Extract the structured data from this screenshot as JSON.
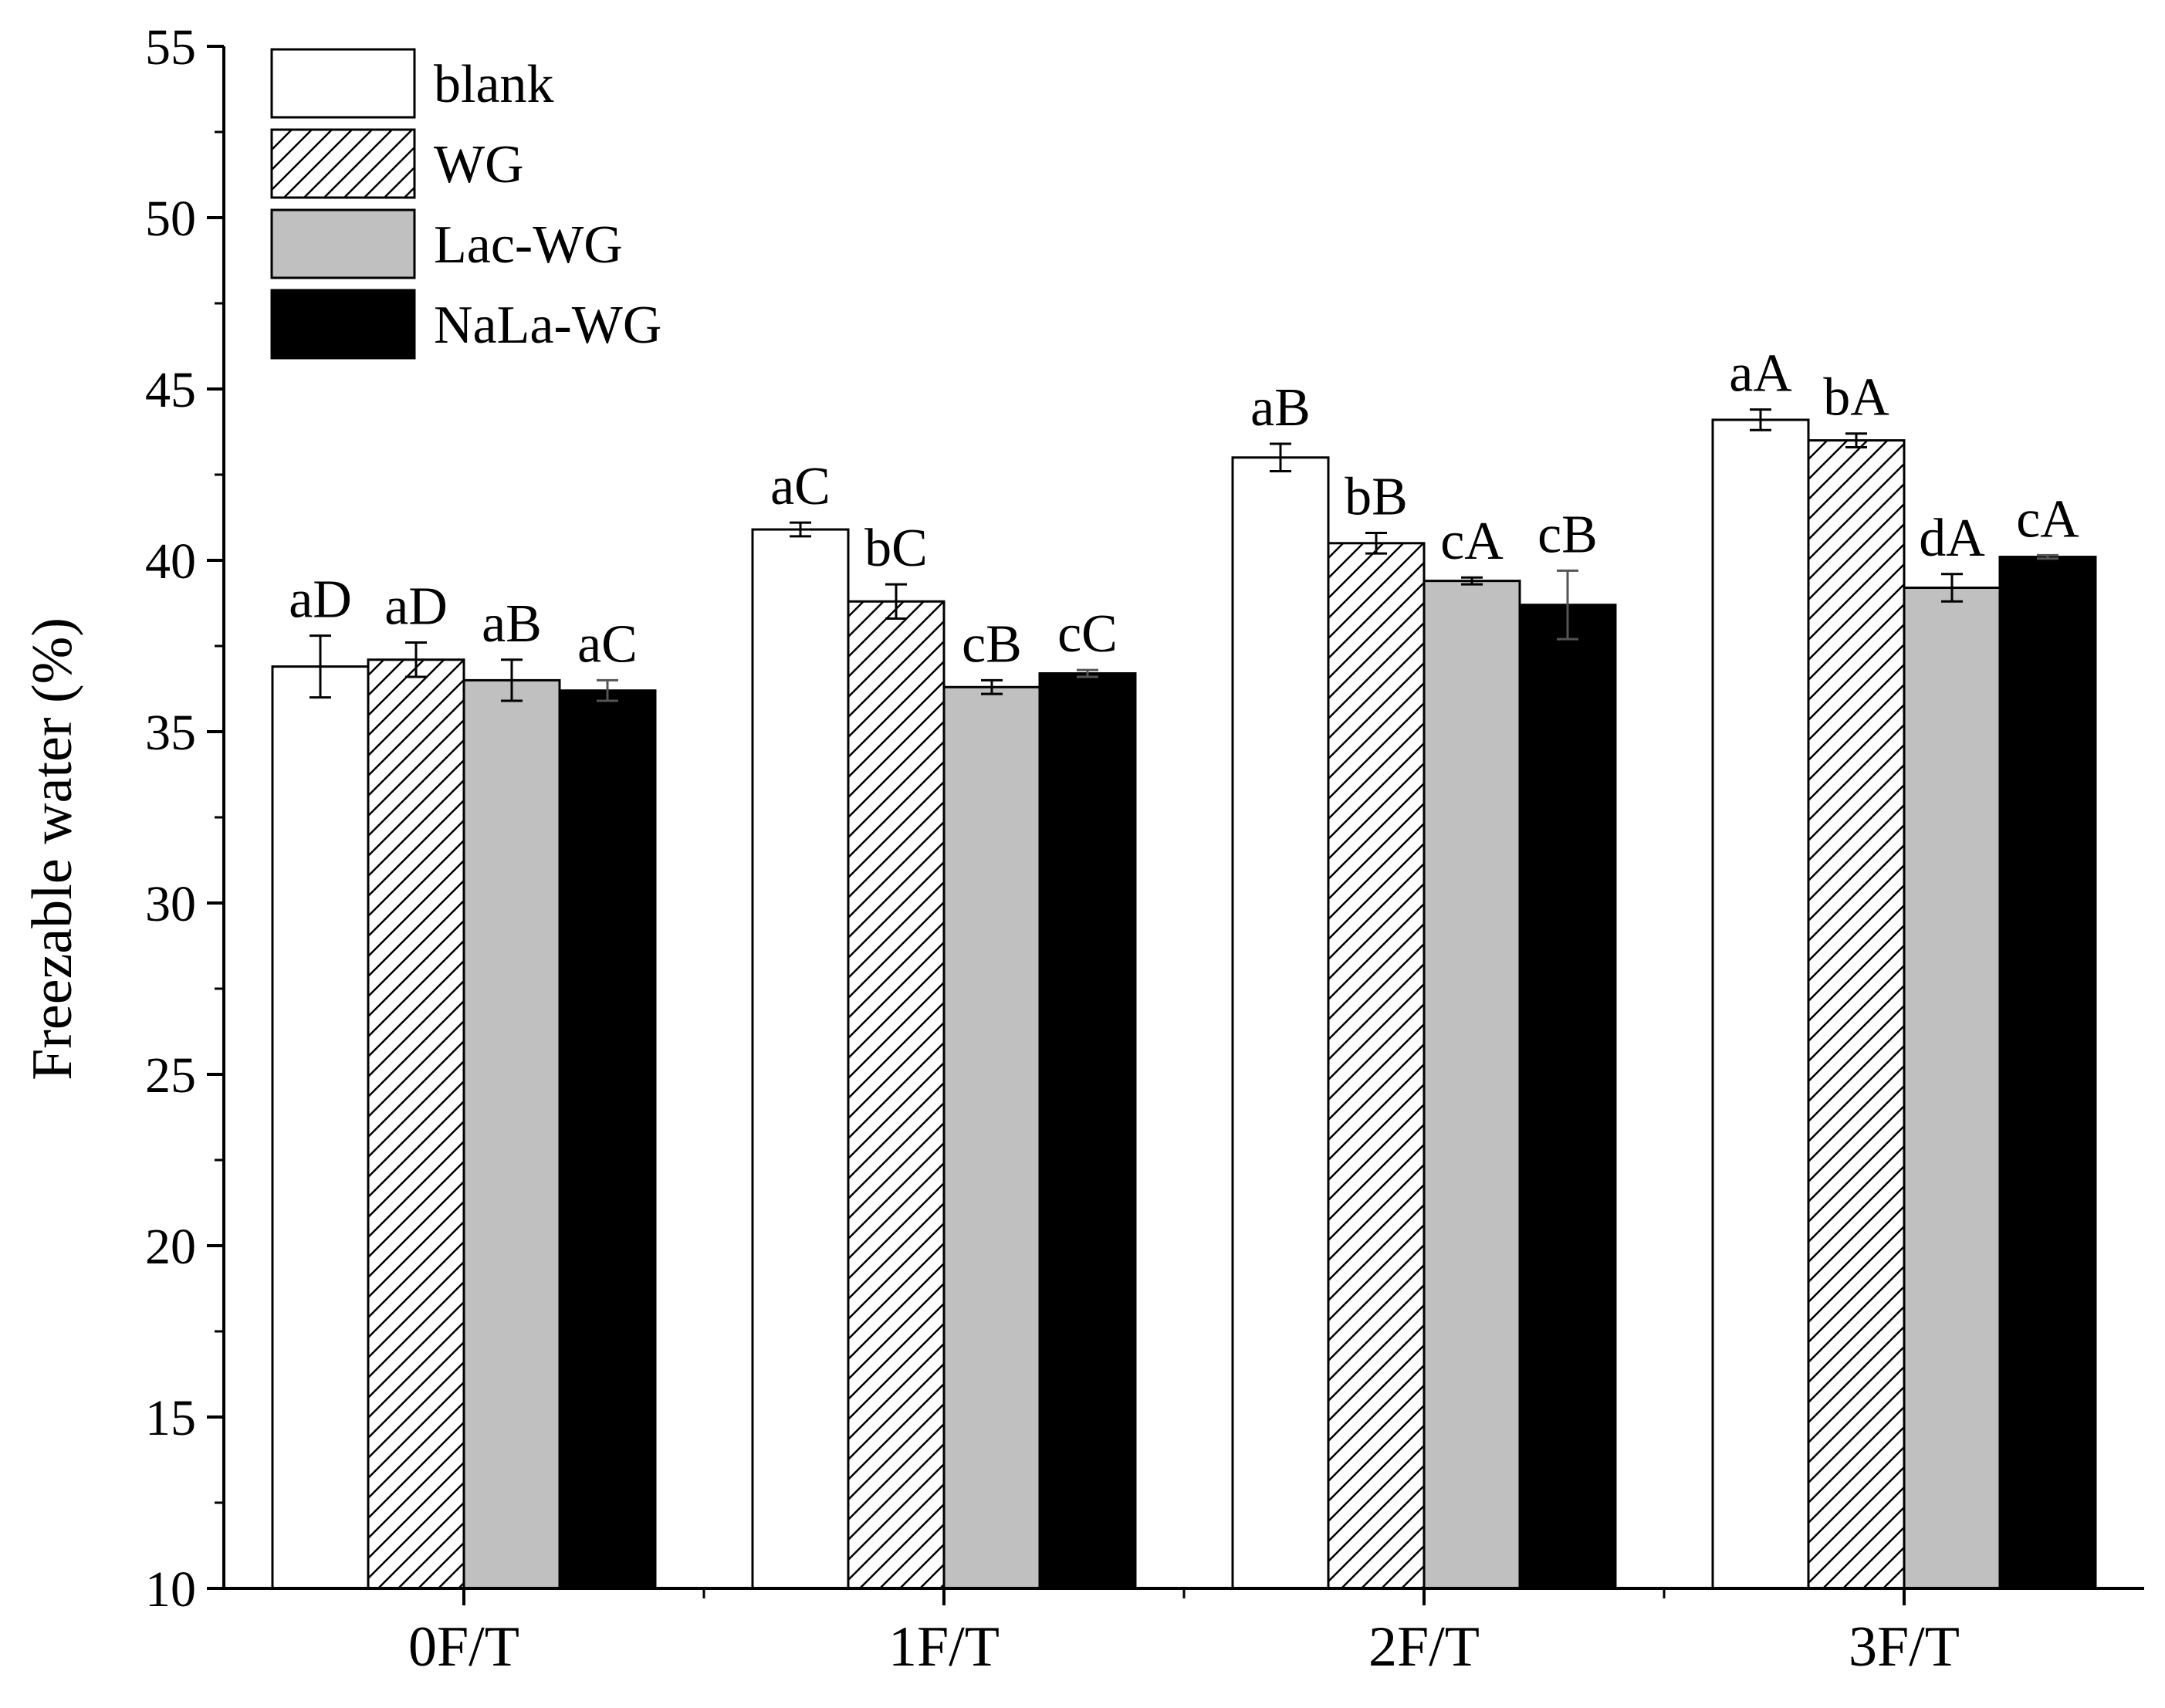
{
  "chart_data": {
    "type": "bar",
    "title": "",
    "xlabel": "",
    "ylabel": "Freezable water (%)",
    "ylim": [
      10,
      55
    ],
    "yticks": [
      10,
      15,
      20,
      25,
      30,
      35,
      40,
      45,
      50,
      55
    ],
    "categories": [
      "0F/T",
      "1F/T",
      "2F/T",
      "3F/T"
    ],
    "grid": false,
    "legend_position": "top-left",
    "series": [
      {
        "name": "blank",
        "fill": "#ffffff",
        "pattern": "none",
        "values": [
          36.9,
          40.9,
          43.0,
          44.1
        ],
        "errors": [
          0.9,
          0.2,
          0.4,
          0.3
        ],
        "labels": [
          "aD",
          "aC",
          "aB",
          "aA"
        ]
      },
      {
        "name": "WG",
        "fill": "#ffffff",
        "pattern": "hatch",
        "values": [
          37.1,
          38.8,
          40.5,
          43.5
        ],
        "errors": [
          0.5,
          0.5,
          0.3,
          0.2
        ],
        "labels": [
          "aD",
          "bC",
          "bB",
          "bA"
        ]
      },
      {
        "name": "Lac-WG",
        "fill": "#c0c0c0",
        "pattern": "none",
        "values": [
          36.5,
          36.3,
          39.4,
          39.2
        ],
        "errors": [
          0.6,
          0.2,
          0.1,
          0.4
        ],
        "labels": [
          "aB",
          "cB",
          "cA",
          "dA"
        ]
      },
      {
        "name": "NaLa-WG",
        "fill": "#000000",
        "pattern": "none",
        "values": [
          36.2,
          36.7,
          38.7,
          40.1
        ],
        "errors": [
          0.3,
          0.1,
          1.0,
          0.05
        ],
        "labels": [
          "aC",
          "cC",
          "cB",
          "cA"
        ]
      }
    ]
  }
}
